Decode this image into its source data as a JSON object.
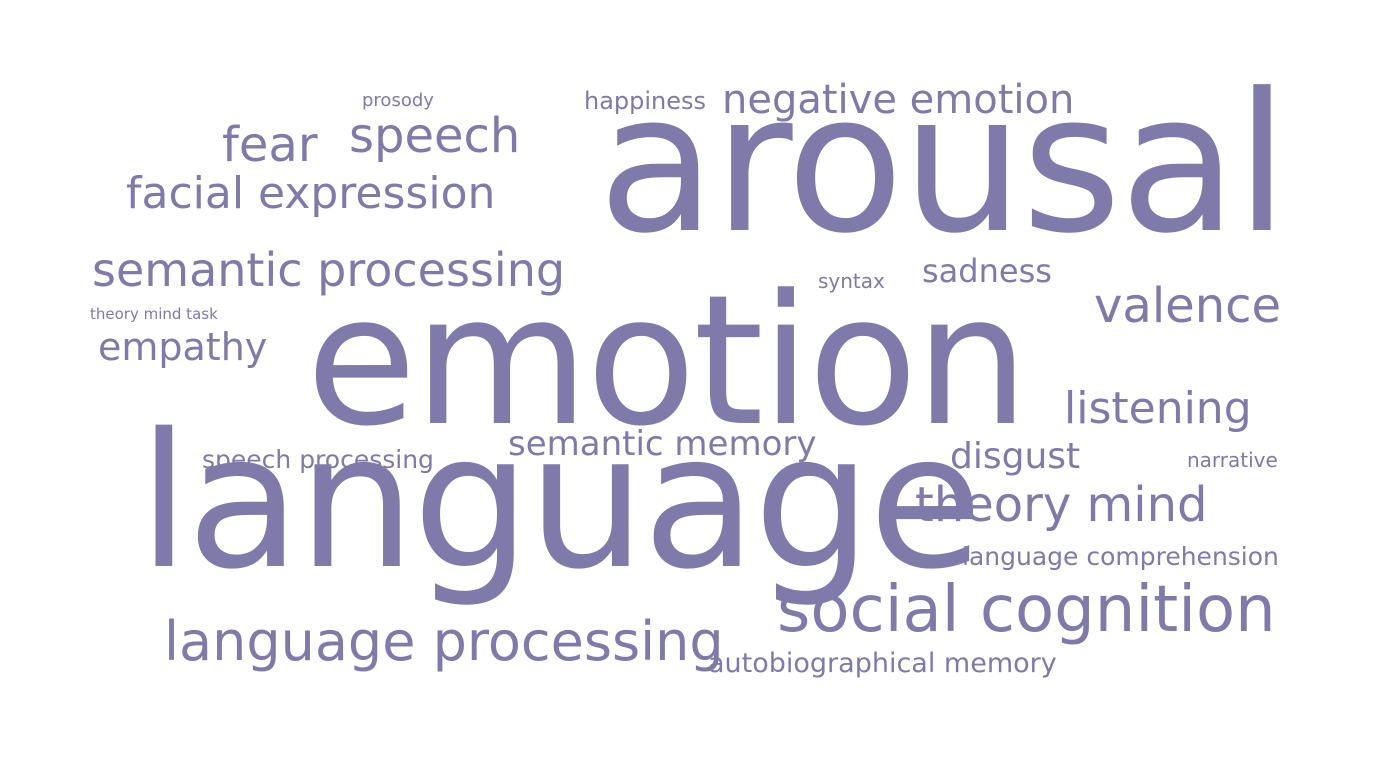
{
  "colors": {
    "background": "#ffffff",
    "word": "#7f7aaa"
  },
  "words": {
    "arousal": "arousal",
    "emotion": "emotion",
    "language": "language",
    "negative_emotion": "negative emotion",
    "happiness": "happiness",
    "prosody": "prosody",
    "speech": "speech",
    "fear": "fear",
    "facial_expression": "facial expression",
    "semantic_processing": "semantic processing",
    "sadness": "sadness",
    "syntax": "syntax",
    "valence": "valence",
    "theory_mind_task": "theory mind task",
    "empathy": "empathy",
    "listening": "listening",
    "semantic_memory": "semantic memory",
    "speech_processing": "speech processing",
    "disgust": "disgust",
    "narrative": "narrative",
    "theory_mind": "theory mind",
    "language_comprehension": "language comprehension",
    "social_cognition": "social cognition",
    "language_processing": "language processing",
    "autobiographical_memory": "autobiographical memory"
  }
}
